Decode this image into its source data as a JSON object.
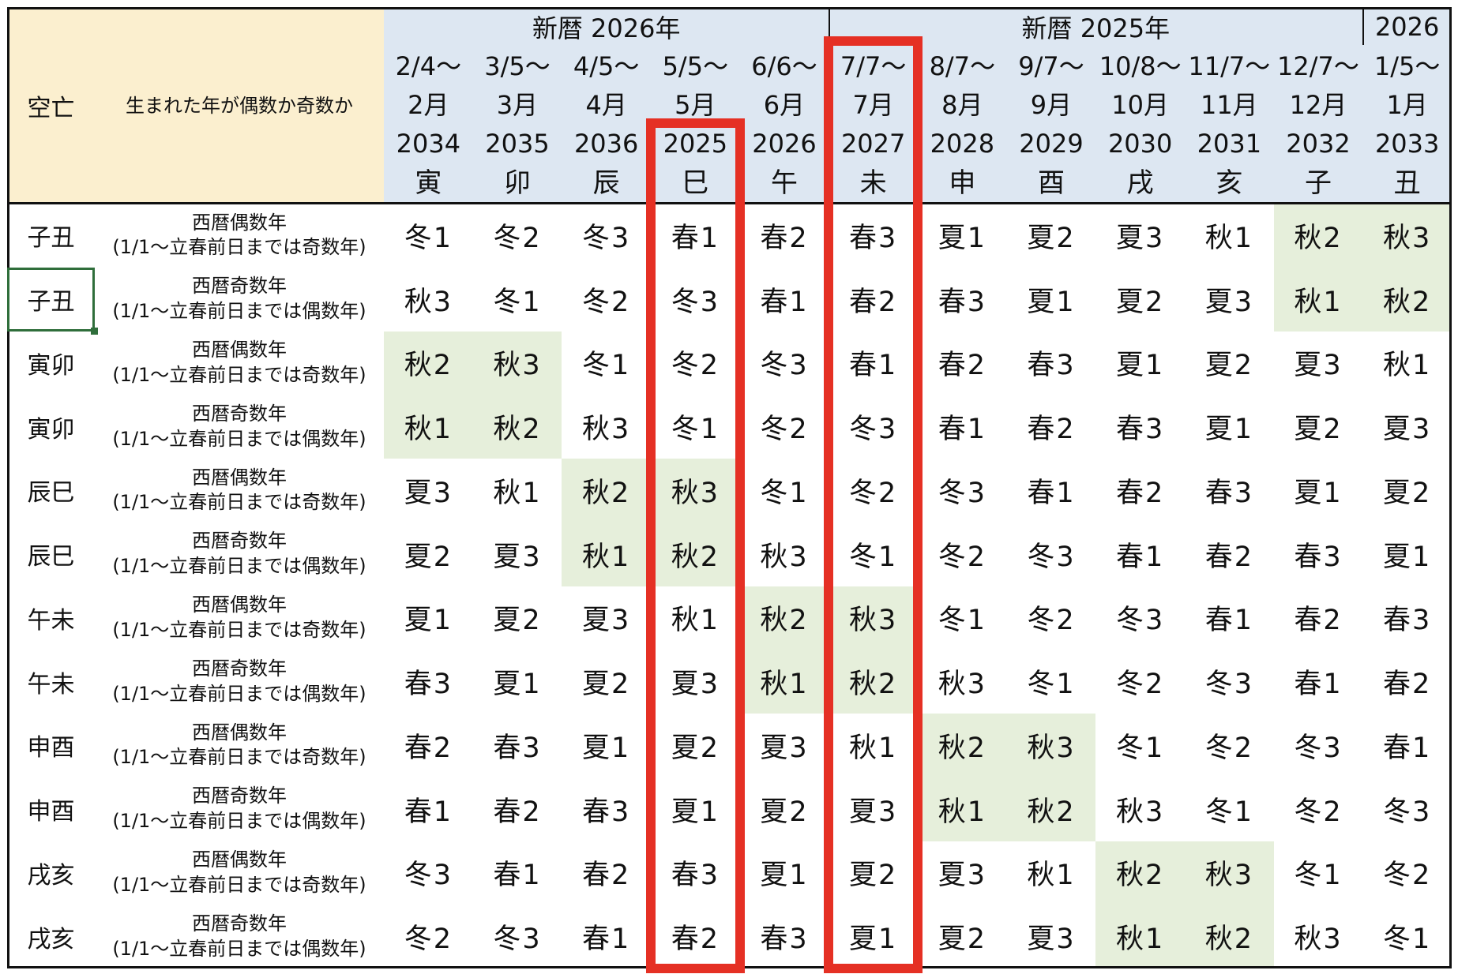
{
  "header": {
    "kucho_label": "空亡",
    "parity_label": "生まれた年が偶数か奇数か",
    "era_groups": [
      "新暦 2026年",
      "新暦 2025年",
      "2026"
    ],
    "columns": [
      {
        "date": "2/4〜",
        "month": "2月",
        "year": "2034",
        "branch": "寅"
      },
      {
        "date": "3/5〜",
        "month": "3月",
        "year": "2035",
        "branch": "卯"
      },
      {
        "date": "4/5〜",
        "month": "4月",
        "year": "2036",
        "branch": "辰"
      },
      {
        "date": "5/5〜",
        "month": "5月",
        "year": "2025",
        "branch": "巳"
      },
      {
        "date": "6/6〜",
        "month": "6月",
        "year": "2026",
        "branch": "午"
      },
      {
        "date": "7/7〜",
        "month": "7月",
        "year": "2027",
        "branch": "未"
      },
      {
        "date": "8/7〜",
        "month": "8月",
        "year": "2028",
        "branch": "申"
      },
      {
        "date": "9/7〜",
        "month": "9月",
        "year": "2029",
        "branch": "酉"
      },
      {
        "date": "10/8〜",
        "month": "10月",
        "year": "2030",
        "branch": "戌"
      },
      {
        "date": "11/7〜",
        "month": "11月",
        "year": "2031",
        "branch": "亥"
      },
      {
        "date": "12/7〜",
        "month": "12月",
        "year": "2032",
        "branch": "子"
      },
      {
        "date": "1/5〜",
        "month": "1月",
        "year": "2033",
        "branch": "丑"
      }
    ]
  },
  "rows": [
    {
      "kucho": "子丑",
      "parity": "西暦偶数年",
      "note": "(1/1〜立春前日までは奇数年)",
      "values": [
        "冬1",
        "冬2",
        "冬3",
        "春1",
        "春2",
        "春3",
        "夏1",
        "夏2",
        "夏3",
        "秋1",
        "秋2",
        "秋3"
      ],
      "highlight": [
        10,
        11
      ]
    },
    {
      "kucho": "子丑",
      "parity": "西暦奇数年",
      "note": "(1/1〜立春前日までは偶数年)",
      "values": [
        "秋3",
        "冬1",
        "冬2",
        "冬3",
        "春1",
        "春2",
        "春3",
        "夏1",
        "夏2",
        "夏3",
        "秋1",
        "秋2"
      ],
      "highlight": [
        10,
        11
      ]
    },
    {
      "kucho": "寅卯",
      "parity": "西暦偶数年",
      "note": "(1/1〜立春前日までは奇数年)",
      "values": [
        "秋2",
        "秋3",
        "冬1",
        "冬2",
        "冬3",
        "春1",
        "春2",
        "春3",
        "夏1",
        "夏2",
        "夏3",
        "秋1"
      ],
      "highlight": [
        0,
        1
      ]
    },
    {
      "kucho": "寅卯",
      "parity": "西暦奇数年",
      "note": "(1/1〜立春前日までは偶数年)",
      "values": [
        "秋1",
        "秋2",
        "秋3",
        "冬1",
        "冬2",
        "冬3",
        "春1",
        "春2",
        "春3",
        "夏1",
        "夏2",
        "夏3"
      ],
      "highlight": [
        0,
        1
      ]
    },
    {
      "kucho": "辰巳",
      "parity": "西暦偶数年",
      "note": "(1/1〜立春前日までは奇数年)",
      "values": [
        "夏3",
        "秋1",
        "秋2",
        "秋3",
        "冬1",
        "冬2",
        "冬3",
        "春1",
        "春2",
        "春3",
        "夏1",
        "夏2"
      ],
      "highlight": [
        2,
        3
      ]
    },
    {
      "kucho": "辰巳",
      "parity": "西暦奇数年",
      "note": "(1/1〜立春前日までは偶数年)",
      "values": [
        "夏2",
        "夏3",
        "秋1",
        "秋2",
        "秋3",
        "冬1",
        "冬2",
        "冬3",
        "春1",
        "春2",
        "春3",
        "夏1"
      ],
      "highlight": [
        2,
        3
      ]
    },
    {
      "kucho": "午未",
      "parity": "西暦偶数年",
      "note": "(1/1〜立春前日までは奇数年)",
      "values": [
        "夏1",
        "夏2",
        "夏3",
        "秋1",
        "秋2",
        "秋3",
        "冬1",
        "冬2",
        "冬3",
        "春1",
        "春2",
        "春3"
      ],
      "highlight": [
        4,
        5
      ]
    },
    {
      "kucho": "午未",
      "parity": "西暦奇数年",
      "note": "(1/1〜立春前日までは偶数年)",
      "values": [
        "春3",
        "夏1",
        "夏2",
        "夏3",
        "秋1",
        "秋2",
        "秋3",
        "冬1",
        "冬2",
        "冬3",
        "春1",
        "春2"
      ],
      "highlight": [
        4,
        5
      ]
    },
    {
      "kucho": "申酉",
      "parity": "西暦偶数年",
      "note": "(1/1〜立春前日までは奇数年)",
      "values": [
        "春2",
        "春3",
        "夏1",
        "夏2",
        "夏3",
        "秋1",
        "秋2",
        "秋3",
        "冬1",
        "冬2",
        "冬3",
        "春1"
      ],
      "highlight": [
        6,
        7
      ]
    },
    {
      "kucho": "申酉",
      "parity": "西暦奇数年",
      "note": "(1/1〜立春前日までは偶数年)",
      "values": [
        "春1",
        "春2",
        "春3",
        "夏1",
        "夏2",
        "夏3",
        "秋1",
        "秋2",
        "秋3",
        "冬1",
        "冬2",
        "冬3"
      ],
      "highlight": [
        6,
        7
      ]
    },
    {
      "kucho": "戌亥",
      "parity": "西暦偶数年",
      "note": "(1/1〜立春前日までは奇数年)",
      "values": [
        "冬3",
        "春1",
        "春2",
        "春3",
        "夏1",
        "夏2",
        "夏3",
        "秋1",
        "秋2",
        "秋3",
        "冬1",
        "冬2"
      ],
      "highlight": [
        8,
        9
      ]
    },
    {
      "kucho": "戌亥",
      "parity": "西暦奇数年",
      "note": "(1/1〜立春前日までは偶数年)",
      "values": [
        "冬2",
        "冬3",
        "春1",
        "春2",
        "春3",
        "夏1",
        "夏2",
        "夏3",
        "秋1",
        "秋2",
        "秋3",
        "冬1"
      ],
      "highlight": [
        8,
        9
      ]
    }
  ],
  "highlighted_columns": [
    3,
    5
  ],
  "selected_cell": {
    "row": 1,
    "column": "kucho"
  },
  "colors": {
    "header_left_bg": "#fbefcf",
    "header_right_bg": "#dde7f2",
    "highlight_green": "#e6efdb",
    "red_frame": "#e53024",
    "selection_green": "#2f6e3b"
  }
}
